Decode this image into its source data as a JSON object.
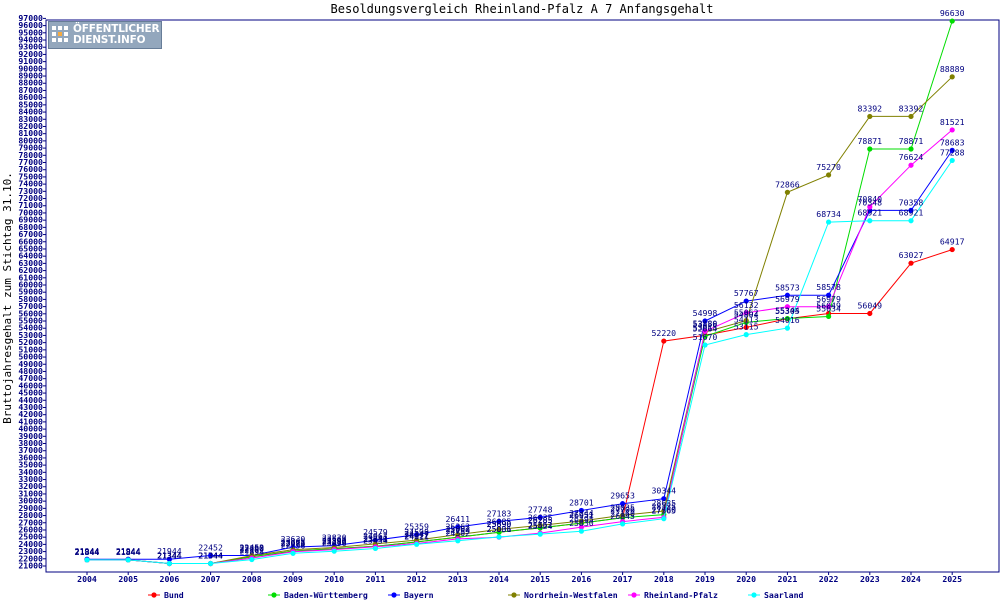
{
  "logo": {
    "line1": "ÖFFENTLICHER",
    "line2": "DIENST.INFO"
  },
  "chart_data": {
    "type": "line",
    "title": "Besoldungsvergleich Rheinland-Pfalz A 7 Anfangsgehalt",
    "xlabel": "",
    "ylabel": "Bruttojahresgehalt zum Stichtag 31.10.",
    "x": [
      "2004",
      "2005",
      "2006",
      "2007",
      "2008",
      "2009",
      "2010",
      "2011",
      "2012",
      "2013",
      "2014",
      "2015",
      "2016",
      "2017",
      "2018",
      "2019",
      "2020",
      "2021",
      "2022",
      "2023",
      "2024",
      "2025"
    ],
    "ylim": [
      21000,
      97000
    ],
    "ytick_step": 1000,
    "grid": false,
    "legend_position": "bottom",
    "series": [
      {
        "name": "Bund",
        "color": "#ff0000",
        "values": [
          21844,
          21844,
          21344,
          21344,
          22290,
          23073,
          23390,
          23741,
          24347,
          25002,
          25690,
          26285,
          26951,
          27706,
          52220,
          53015,
          54113,
          55305,
          56049,
          56049,
          63027,
          64917
        ],
        "labels": [
          "21844",
          "21844",
          "21344",
          "21344",
          "22290",
          "23073",
          "23390",
          "23741",
          "24347",
          "25002",
          "25690",
          "26285",
          "26951",
          "27706",
          "52220",
          "53015",
          "54113",
          "55305",
          "56049",
          "56049",
          "63027",
          "64917"
        ]
      },
      {
        "name": "Baden-Württemberg",
        "color": "#00dd00",
        "values": [
          21844,
          21844,
          21344,
          21344,
          22290,
          23073,
          23390,
          23741,
          24347,
          25002,
          25690,
          26285,
          26951,
          27706,
          28135,
          52864,
          54804,
          55344,
          55634,
          78871,
          78871,
          96630
        ],
        "labels": [
          "21844",
          "21844",
          "21344",
          "21344",
          "22290",
          "23073",
          "23390",
          "23741",
          "24347",
          "25002",
          "25690",
          "26285",
          "26951",
          "27706",
          "28135",
          "52864",
          "54804",
          "55344",
          "55634",
          "78871",
          "78871",
          "96630"
        ]
      },
      {
        "name": "Bayern",
        "color": "#0000ff",
        "values": [
          21944,
          21944,
          21944,
          22452,
          22452,
          23630,
          23830,
          24579,
          25359,
          26411,
          27183,
          27748,
          28701,
          29653,
          30344,
          54998,
          57767,
          58573,
          58578,
          70348,
          70358,
          78683
        ],
        "labels": [
          "21944",
          "21944",
          "21944",
          "22452",
          "22452",
          "23630",
          "23830",
          "24579",
          "25359",
          "26411",
          "27183",
          "27748",
          "28701",
          "29653",
          "30344",
          "54998",
          "57767",
          "58573",
          "58578",
          "70348",
          "70358",
          "78683"
        ]
      },
      {
        "name": "Nordrhein-Westfalen",
        "color": "#808000",
        "values": [
          21844,
          21844,
          21344,
          21344,
          22450,
          23261,
          23561,
          24063,
          24598,
          25362,
          26085,
          26635,
          27244,
          28035,
          28635,
          53456,
          55062,
          72866,
          75270,
          83392,
          83392,
          88889
        ],
        "labels": [
          "21844",
          "21844",
          "21344",
          "21344",
          "22450",
          "23261",
          "23561",
          "24063",
          "24598",
          "25362",
          "26085",
          "26635",
          "27244",
          "28035",
          "28635",
          "53456",
          "55062",
          "72866",
          "75270",
          "83392",
          "83392",
          "88889"
        ]
      },
      {
        "name": "Rheinland-Pfalz",
        "color": "#ff00ff",
        "values": [
          21844,
          21844,
          21344,
          21344,
          22102,
          22980,
          23280,
          23658,
          24122,
          24759,
          25001,
          25562,
          26395,
          27160,
          27760,
          53580,
          56132,
          56979,
          56979,
          70840,
          76624,
          81521
        ],
        "labels": [
          "21844",
          "21844",
          "21344",
          "21344",
          "22102",
          "22980",
          "23280",
          "23658",
          "24122",
          "24759",
          "25001",
          "25562",
          "26395",
          "27160",
          "27760",
          "53580",
          "56132",
          "56979",
          "56979",
          "70840",
          "76624",
          "81521"
        ]
      },
      {
        "name": "Saarland",
        "color": "#00ffff",
        "values": [
          21844,
          21844,
          21344,
          21344,
          21893,
          22756,
          23056,
          23434,
          24011,
          24502,
          25036,
          25424,
          25830,
          26845,
          27565,
          51670,
          53115,
          54016,
          68734,
          68921,
          68921,
          77288
        ],
        "labels": [
          "21844",
          "21844",
          "21344",
          "21344",
          "21893",
          "22756",
          "23056",
          "23434",
          "24011",
          "24502",
          "25036",
          "25424",
          "25830",
          "26845",
          "27565",
          "51670",
          "53115",
          "54016",
          "68734",
          "68921",
          "68921",
          "77288"
        ]
      }
    ]
  }
}
